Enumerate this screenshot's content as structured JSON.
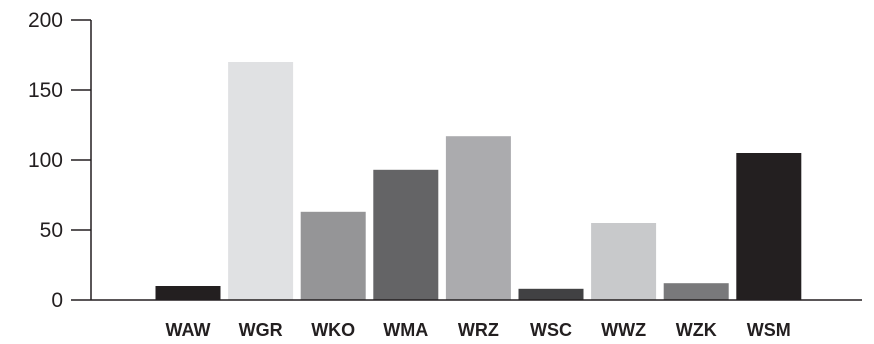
{
  "chart_data": {
    "type": "bar",
    "title": "",
    "xlabel": "",
    "ylabel": "",
    "ylim": [
      0,
      200
    ],
    "yticks": [
      "0",
      "50",
      "100",
      "150",
      "200"
    ],
    "categories": [
      "WAW",
      "WGR",
      "WKO",
      "WMA",
      "WRZ",
      "WSC",
      "WWZ",
      "WZK",
      "WSM"
    ],
    "values": [
      10,
      170,
      63,
      93,
      117,
      8,
      55,
      12,
      105
    ],
    "colors": [
      "#231f20",
      "#e0e1e3",
      "#959597",
      "#646466",
      "#ababae",
      "#414143",
      "#c8c9cb",
      "#79797b",
      "#231f20"
    ],
    "grid": false,
    "legend": "none"
  }
}
